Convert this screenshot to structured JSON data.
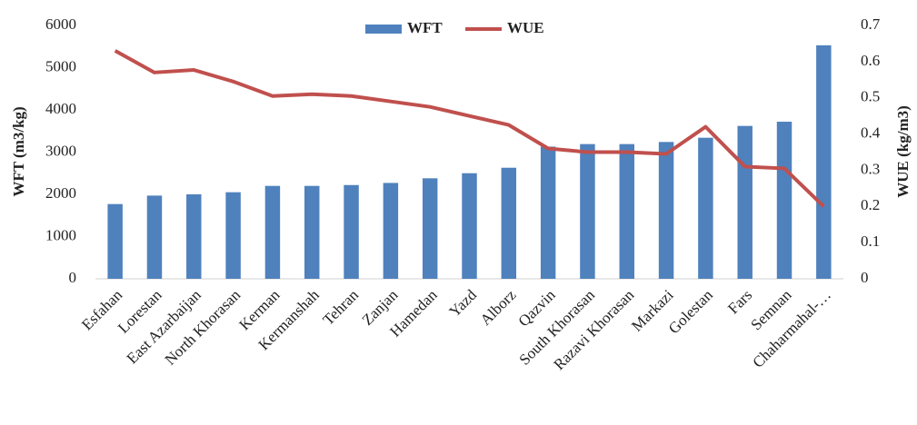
{
  "chart_data": {
    "type": "bar",
    "categories": [
      "Esfahan",
      "Lorestan",
      "East Azarbaijan",
      "North Khorasan",
      "Kerman",
      "Kermanshah",
      "Tehran",
      "Zanjan",
      "Hamedan",
      "Yazd",
      "Alborz",
      "Qazvin",
      "South Khorasan",
      "Razavi Khorasan",
      "Markazi",
      "Golestan",
      "Fars",
      "Semnan",
      "Chaharmahal-…"
    ],
    "series": [
      {
        "name": "WFT",
        "type": "bar",
        "color": "#4f81bd",
        "values": [
          1770,
          1970,
          2000,
          2050,
          2200,
          2200,
          2220,
          2270,
          2380,
          2500,
          2630,
          3130,
          3190,
          3190,
          3240,
          3340,
          3620,
          3720,
          5530
        ]
      },
      {
        "name": "WUE",
        "type": "line",
        "axis": "y2",
        "color": "#c0504d",
        "values": [
          0.63,
          0.57,
          0.577,
          0.545,
          0.505,
          0.51,
          0.505,
          0.49,
          0.475,
          0.45,
          0.425,
          0.36,
          0.35,
          0.35,
          0.345,
          0.42,
          0.31,
          0.305,
          0.2
        ]
      }
    ],
    "y_label": "WFT  (m3/kg)",
    "y2_label": "WUE  (kg/m3)",
    "ylim": [
      0,
      6000
    ],
    "yticks": [
      0,
      1000,
      2000,
      3000,
      4000,
      5000,
      6000
    ],
    "y2lim": [
      0,
      0.7
    ],
    "y2ticks": [
      0,
      0.1,
      0.2,
      0.3,
      0.4,
      0.5,
      0.6,
      0.7
    ],
    "grid": false,
    "legend": "top"
  }
}
